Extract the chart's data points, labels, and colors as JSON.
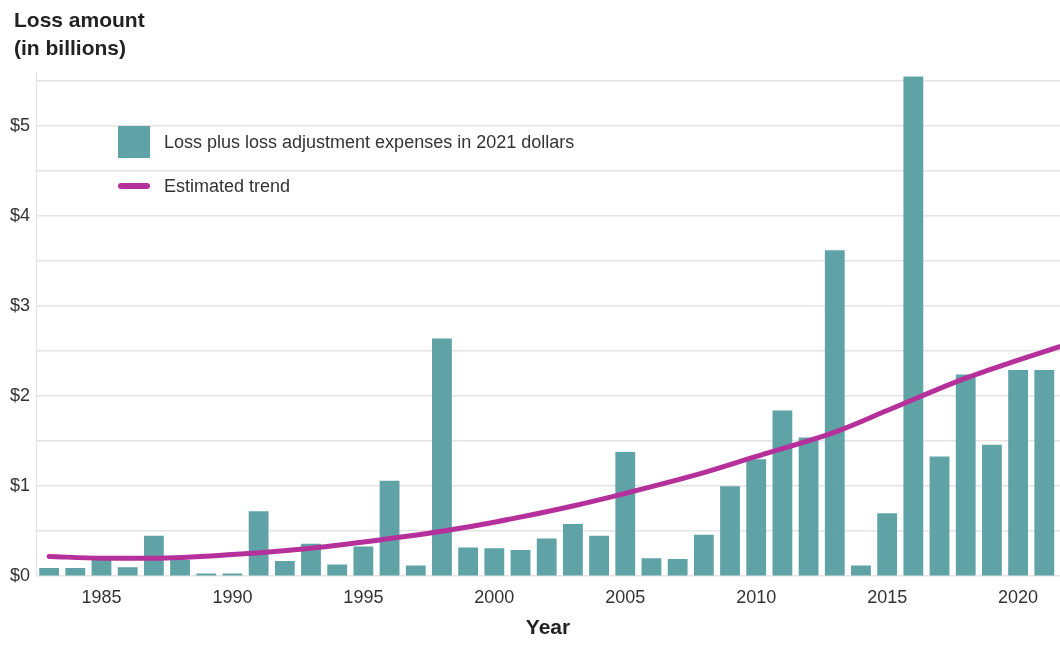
{
  "chart_data": {
    "type": "bar",
    "ylabel": "Loss amount (in billions)",
    "xlabel": "Year",
    "legend": "top left",
    "grid": "y",
    "x": [
      1983,
      1984,
      1985,
      1986,
      1987,
      1988,
      1989,
      1990,
      1991,
      1992,
      1993,
      1994,
      1995,
      1996,
      1997,
      1998,
      1999,
      2000,
      2001,
      2002,
      2003,
      2004,
      2005,
      2006,
      2007,
      2008,
      2009,
      2010,
      2011,
      2012,
      2013,
      2014,
      2015,
      2016,
      2017,
      2018,
      2019,
      2020,
      2021
    ],
    "xlim": [
      1982.5,
      2021.6
    ],
    "xticks": [
      1985,
      1990,
      1995,
      2000,
      2005,
      2010,
      2015,
      2020
    ],
    "ylim": [
      0,
      5.6
    ],
    "yticks": [
      {
        "value": 0,
        "label": "$0"
      },
      {
        "value": 0.5,
        "label": null
      },
      {
        "value": 1,
        "label": "$1"
      },
      {
        "value": 1.5,
        "label": null
      },
      {
        "value": 2,
        "label": "$2"
      },
      {
        "value": 2.5,
        "label": null
      },
      {
        "value": 3,
        "label": "$3"
      },
      {
        "value": 3.5,
        "label": null
      },
      {
        "value": 4,
        "label": "$4"
      },
      {
        "value": 4.5,
        "label": null
      },
      {
        "value": 5,
        "label": "$5"
      },
      {
        "value": 5.5,
        "label": null
      }
    ],
    "series": [
      {
        "name": "Loss plus loss adjustment expenses in 2021 dollars",
        "color": "#5fa3a6",
        "values": [
          0.09,
          0.09,
          0.18,
          0.1,
          0.45,
          0.18,
          0.03,
          0.03,
          0.72,
          0.17,
          0.36,
          0.13,
          0.33,
          1.06,
          0.12,
          2.64,
          0.32,
          0.31,
          0.29,
          0.42,
          0.58,
          0.45,
          1.38,
          0.2,
          0.19,
          0.46,
          1.0,
          1.3,
          1.84,
          1.54,
          3.62,
          0.12,
          0.7,
          5.55,
          1.33,
          2.24,
          1.46,
          2.29,
          2.29
        ]
      },
      {
        "name": "Estimated trend",
        "type": "line",
        "color": "#b5309a",
        "x": [
          1983,
          1985,
          1987,
          1990,
          1993,
          1995,
          1998,
          2000,
          2003,
          2005,
          2008,
          2010,
          2013,
          2015,
          2018,
          2020,
          2021.6
        ],
        "values": [
          0.22,
          0.2,
          0.2,
          0.24,
          0.31,
          0.38,
          0.5,
          0.6,
          0.78,
          0.92,
          1.15,
          1.33,
          1.6,
          1.84,
          2.2,
          2.4,
          2.55
        ]
      }
    ]
  }
}
